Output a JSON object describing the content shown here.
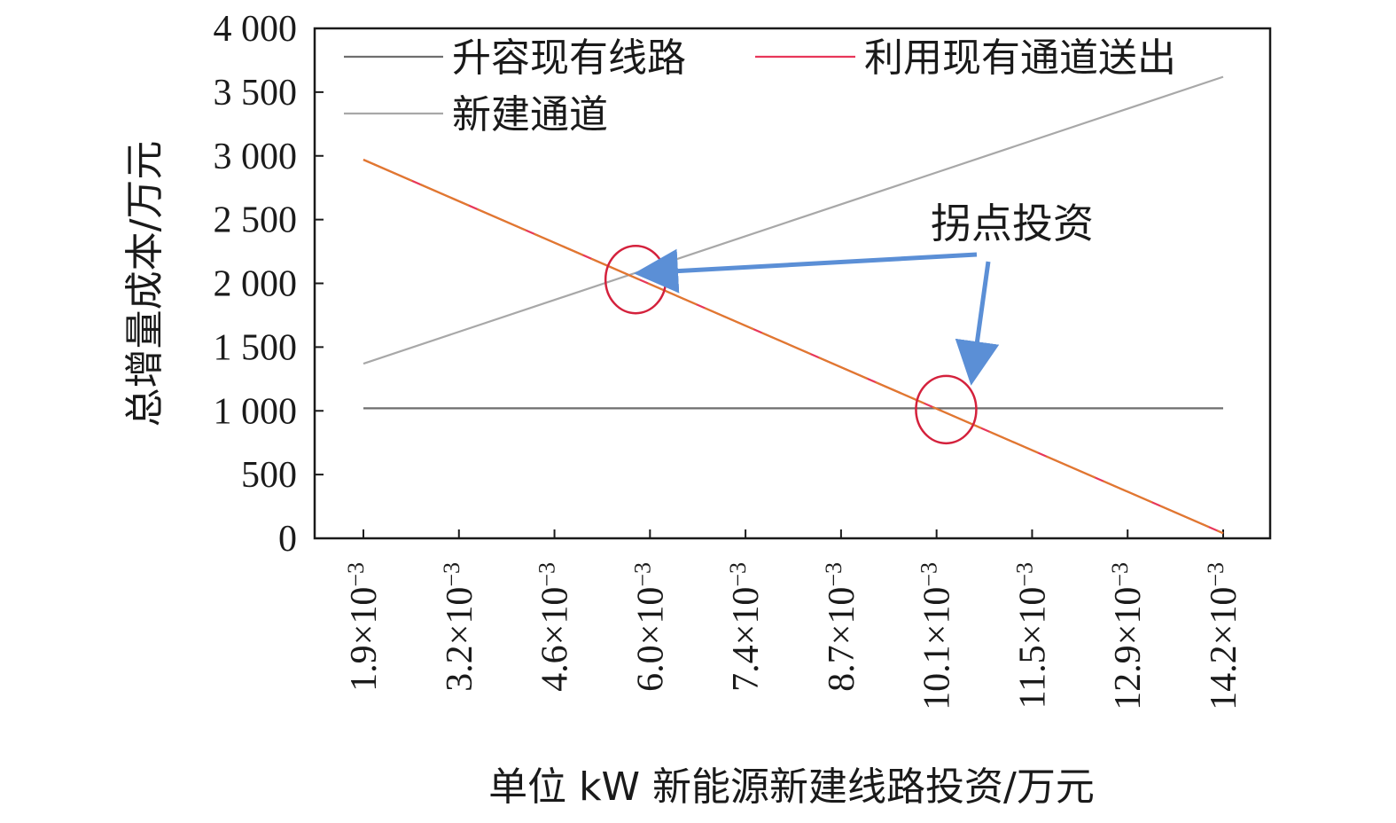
{
  "chart_data": {
    "type": "line",
    "xlabel": "单位 kW 新能源新建线路投资/万元",
    "ylabel": "总增量成本/万元",
    "categories": [
      "1.9",
      "3.2",
      "4.6",
      "6.0",
      "7.4",
      "8.7",
      "10.1",
      "11.5",
      "12.9",
      "14.2"
    ],
    "category_exponent": "−3",
    "category_multiplier": "×10",
    "ylim": [
      0,
      4000
    ],
    "yticks": [
      0,
      500,
      1000,
      1500,
      2000,
      2500,
      3000,
      3500,
      4000
    ],
    "ytick_labels": [
      "0",
      "500",
      "1 000",
      "1 500",
      "2 000",
      "2 500",
      "3 000",
      "3 500",
      "4 000"
    ],
    "grid": false,
    "legend_position": "top",
    "series": [
      {
        "name": "升容现有线路",
        "color": "#6e6e6e",
        "start": 1020,
        "end": 1020
      },
      {
        "name": "利用现有通道送出",
        "color": "#e8375a",
        "overlay_color": "#e07a2f",
        "start": 2970,
        "end": 40
      },
      {
        "name": "新建通道",
        "color": "#a8a8a8",
        "start": 1370,
        "end": 3620
      }
    ],
    "annotations": [
      {
        "text": "拐点投资",
        "targets": [
          {
            "x_index": 2.85,
            "y": 2030
          },
          {
            "x_index": 6.1,
            "y": 1010
          }
        ]
      }
    ],
    "arrow_color": "#5b8fd6",
    "circle_color": "#d4213c"
  }
}
